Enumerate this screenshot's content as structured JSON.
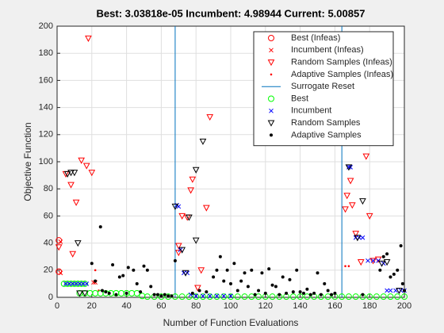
{
  "chart_data": {
    "type": "scatter",
    "title": "Best: 3.03818e-05 Incumbent: 4.98944 Current: 5.00857",
    "xlabel": "Number of Function Evaluations",
    "ylabel": "Objective Function",
    "xlim": [
      0,
      200
    ],
    "xticks": [
      0,
      20,
      40,
      60,
      80,
      100,
      120,
      140,
      160,
      180,
      200
    ],
    "ylim": [
      0,
      200
    ],
    "yticks": [
      0,
      20,
      40,
      60,
      80,
      100,
      120,
      140,
      160,
      180,
      200
    ],
    "grid": true,
    "legend": "upper right",
    "series": [
      {
        "name": "Best (Infeas)",
        "color": "#ff0000",
        "marker": "circle",
        "x": [
          1,
          1
        ],
        "values": [
          42,
          19
        ]
      },
      {
        "name": "Incumbent (Infeas)",
        "color": "#ff0000",
        "marker": "x",
        "x": [
          2,
          2,
          21,
          22
        ],
        "values": [
          41,
          18,
          11,
          11
        ]
      },
      {
        "name": "Random Samples (Infeas)",
        "color": "#ff0000",
        "marker": "triangle",
        "x": [
          1,
          5,
          8,
          9,
          11,
          14,
          17,
          18,
          20,
          70,
          70,
          72,
          75,
          77,
          78,
          81,
          83,
          86,
          88,
          166,
          167,
          169,
          170,
          172,
          175,
          178,
          180,
          182,
          185
        ],
        "values": [
          37,
          91,
          83,
          32,
          70,
          101,
          97,
          191,
          92,
          38,
          33,
          60,
          59,
          79,
          87,
          7,
          20,
          66,
          133,
          65,
          75,
          86,
          68,
          47,
          26,
          104,
          60,
          27,
          28
        ]
      },
      {
        "name": "Adaptive Samples (Infeas)",
        "color": "#ff0000",
        "marker": "asterisk",
        "x": [
          22,
          24,
          166,
          168
        ],
        "values": [
          20,
          5,
          23,
          23
        ]
      },
      {
        "name": "Surrogate Reset",
        "color": "#0072bd",
        "marker": "vline",
        "x": [
          68,
          164
        ]
      },
      {
        "name": "Best",
        "color": "#00ff00",
        "marker": "circle",
        "x": [
          4,
          6,
          8,
          10,
          12,
          14,
          16,
          13,
          16,
          19,
          22,
          25,
          28,
          31,
          34,
          37,
          40,
          43,
          46,
          49,
          52,
          56,
          60,
          64,
          68,
          72,
          76,
          80,
          84,
          88,
          92,
          96,
          100,
          104,
          108,
          112,
          116,
          120,
          124,
          128,
          132,
          136,
          140,
          144,
          148,
          152,
          156,
          160,
          164,
          168,
          172,
          176,
          180,
          184,
          188,
          192,
          196,
          200
        ],
        "values": [
          10,
          10,
          10,
          10,
          10,
          10,
          10,
          3,
          3,
          3,
          3,
          3,
          3,
          3,
          3,
          3,
          3,
          3,
          3,
          1,
          0.5,
          0.5,
          0.5,
          0.5,
          0.5,
          0.5,
          0.5,
          0.5,
          0.5,
          0.5,
          0.5,
          0.5,
          0.5,
          0.5,
          0.5,
          0.5,
          0.5,
          0.5,
          0.5,
          0.5,
          0.5,
          0.5,
          0.5,
          0.5,
          0.5,
          0.5,
          0.5,
          0.5,
          0.5,
          0.5,
          0.5,
          0.5,
          0.5,
          0.5,
          0.5,
          0.5,
          0.5,
          0.5
        ]
      },
      {
        "name": "Incumbent",
        "color": "#0000ff",
        "marker": "x",
        "x": [
          5,
          7,
          9,
          11,
          13,
          15,
          17,
          69,
          70,
          71,
          73,
          75,
          77,
          80,
          84,
          88,
          92,
          96,
          100,
          168,
          169,
          172,
          174,
          176,
          179,
          182,
          185,
          188,
          190,
          192,
          195,
          198,
          200
        ],
        "values": [
          10,
          10,
          10,
          10,
          10,
          10,
          10,
          68,
          67,
          35,
          18,
          18,
          2,
          1,
          1,
          1,
          1,
          1,
          1,
          96,
          96,
          44,
          44,
          44,
          27,
          27,
          27,
          25,
          5,
          5,
          5,
          5,
          5
        ]
      },
      {
        "name": "Random Samples",
        "color": "#000000",
        "marker": "triangle",
        "x": [
          6,
          8,
          10,
          12,
          13,
          16,
          68,
          72,
          74,
          76,
          80,
          80,
          84,
          168,
          173,
          176,
          187,
          190,
          197
        ],
        "values": [
          91,
          92,
          92,
          40,
          3,
          3,
          67,
          35,
          18,
          59,
          42,
          94,
          115,
          96,
          44,
          71,
          25,
          26,
          5
        ]
      },
      {
        "name": "Adaptive Samples",
        "color": "#000000",
        "marker": "dot",
        "x": [
          20,
          22,
          25,
          26,
          28,
          30,
          32,
          34,
          36,
          38,
          40,
          41,
          44,
          46,
          48,
          50,
          52,
          54,
          56,
          58,
          60,
          62,
          64,
          66,
          68,
          78,
          82,
          86,
          90,
          92,
          94,
          96,
          98,
          100,
          102,
          104,
          106,
          108,
          110,
          112,
          114,
          116,
          118,
          120,
          122,
          124,
          126,
          128,
          130,
          132,
          134,
          136,
          138,
          140,
          142,
          144,
          146,
          148,
          150,
          152,
          154,
          156,
          158,
          160,
          176,
          186,
          188,
          190,
          192,
          194,
          196,
          198,
          199,
          200
        ],
        "values": [
          25,
          12,
          52,
          5,
          4,
          3,
          24,
          2,
          15,
          16,
          3,
          22,
          20,
          10,
          4,
          23,
          20,
          8,
          2,
          2,
          1,
          2,
          1,
          1,
          27,
          3,
          5,
          4,
          15,
          20,
          30,
          12,
          20,
          10,
          25,
          5,
          12,
          18,
          8,
          20,
          2,
          5,
          18,
          3,
          21,
          9,
          8,
          2,
          15,
          3,
          13,
          4,
          20,
          4,
          3,
          6,
          2,
          3,
          18,
          2,
          10,
          5,
          2,
          3,
          2,
          20,
          30,
          32,
          15,
          17,
          20,
          38,
          10,
          5
        ]
      }
    ]
  }
}
